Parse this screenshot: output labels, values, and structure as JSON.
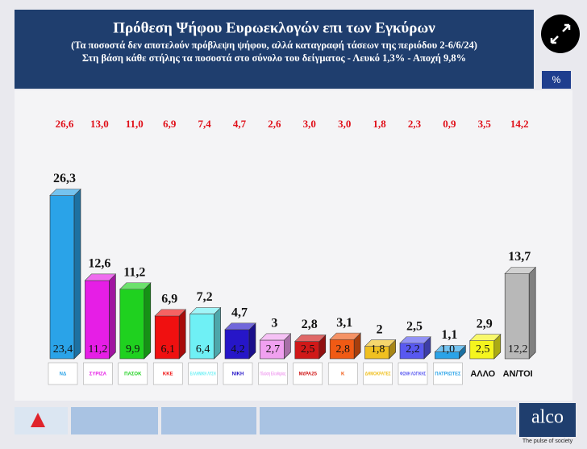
{
  "header": {
    "title": "Πρόθεση Ψήφου Ευρωεκλογών επι των Εγκύρων",
    "subtitle": "(Τα ποσοστά δεν αποτελούν πρόβλεψη ψήφου, αλλά καταγραφή τάσεων της περιόδου  2-6/6/24)",
    "note": "Στη βάση κάθε στήλης τα ποσοστά στο σύνολο του δείγματος - Λευκό 1,3% - Αποχή 9,8%"
  },
  "chart_data": {
    "type": "bar3d",
    "unit": "%",
    "categories": [
      "ΝΔ",
      "ΣΥΡΙΖΑ",
      "ΠΑΣΟΚ",
      "ΚΚΕ",
      "ΕΛΛΗΝΙΚΗ ΛΥΣΗ",
      "ΝΙΚΗ",
      "Πλεύση Ελευθερίας",
      "ΜέΡΑ25",
      "Κ",
      "ΔΗΜΟΚΡΑΤΕΣ",
      "ΦΩΝΗ ΛΟΓΙΚΗΣ",
      "ΠΑΤΡΙΩΤΕΣ",
      "ΑΛΛΟ",
      "ΑΝ/ΤΟΙ"
    ],
    "colors": [
      "#2aa3e8",
      "#e61ee6",
      "#1fd11f",
      "#f01010",
      "#6ff0f5",
      "#2616c8",
      "#f0a0f0",
      "#d01818",
      "#f05a14",
      "#f0c020",
      "#5858f0",
      "#2aa3e8",
      "#f5f51e",
      "#b8b8b8"
    ],
    "values": [
      26.3,
      12.6,
      11.2,
      6.9,
      7.2,
      4.7,
      3,
      2.8,
      3.1,
      2,
      2.5,
      1.1,
      2.9,
      13.7
    ],
    "value_labels": [
      "26,3",
      "12,6",
      "11,2",
      "6,9",
      "7,2",
      "4,7",
      "3",
      "2,8",
      "3,1",
      "2",
      "2,5",
      "1,1",
      "2,9",
      "13,7"
    ],
    "base_values": [
      23.4,
      11.2,
      9.9,
      6.1,
      6.4,
      4.2,
      2.7,
      2.5,
      2.8,
      1.8,
      2.2,
      1.0,
      2.5,
      12.2
    ],
    "base_value_labels": [
      "23,4",
      "11,2",
      "9,9",
      "6,1",
      "6,4",
      "4,2",
      "2,7",
      "2,5",
      "2,8",
      "1,8",
      "2,2",
      "1,0",
      "2,5",
      "12,2"
    ],
    "previous_values": [
      26.6,
      13.0,
      11.0,
      6.9,
      7.4,
      4.7,
      2.6,
      3.0,
      3.0,
      1.8,
      2.3,
      0.9,
      3.5,
      14.2
    ],
    "previous_value_labels": [
      "26,6",
      "13,0",
      "11,0",
      "6,9",
      "7,4",
      "4,7",
      "2,6",
      "3,0",
      "3,0",
      "1,8",
      "2,3",
      "0,9",
      "3,5",
      "14,2"
    ]
  },
  "footer": {
    "brand": "alco",
    "tagline": "The pulse of society"
  }
}
